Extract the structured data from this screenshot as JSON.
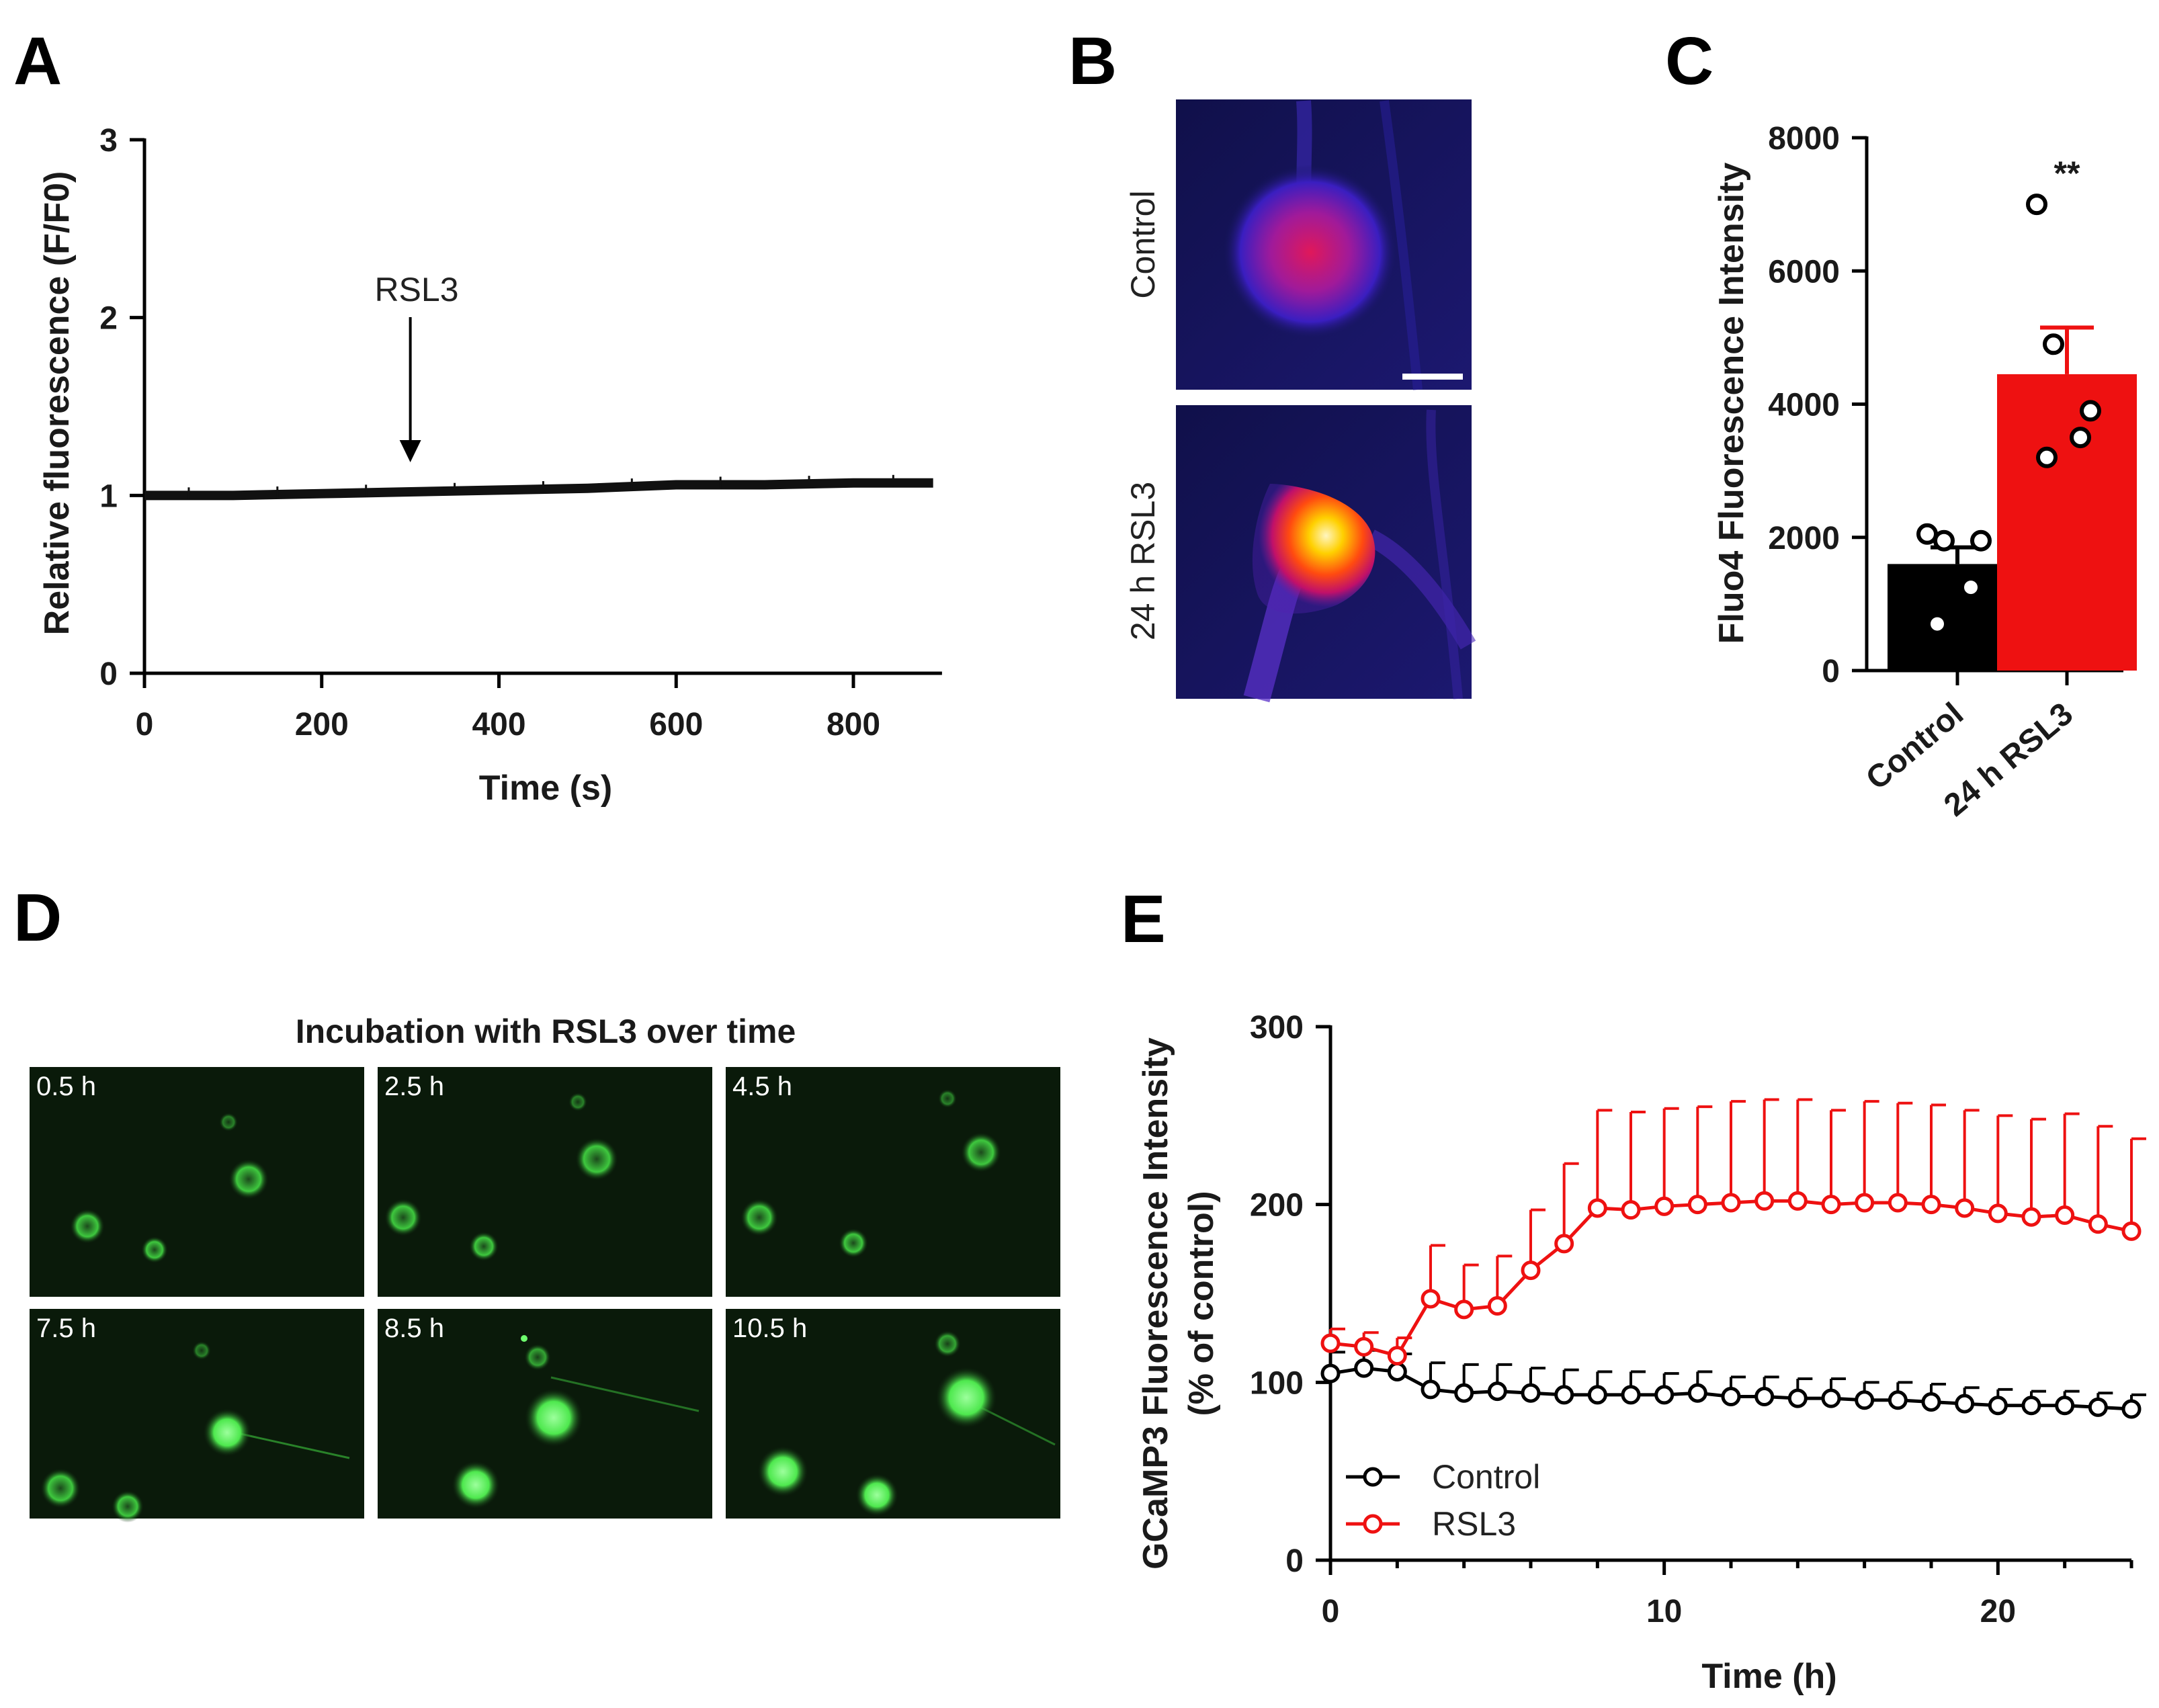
{
  "panels": {
    "A": "A",
    "B": "B",
    "C": "C",
    "D": "D",
    "E": "E"
  },
  "panel_b": {
    "control_label": "Control",
    "rsl3_label": "24 h RSL3",
    "colors": {
      "background": "#15155a",
      "cell_core": "#e0185a",
      "bright_core": "#fff5c0"
    }
  },
  "panel_d": {
    "title": "Incubation with RSL3 over time",
    "timepoints": [
      "0.5 h",
      "2.5 h",
      "4.5 h",
      "7.5 h",
      "8.5 h",
      "10.5 h"
    ],
    "colors": {
      "background": "#0a1a0a",
      "cell": "#3ec83e",
      "bright_cell": "#6eff6e"
    }
  },
  "chart_data": [
    {
      "id": "A",
      "type": "line",
      "title": "",
      "xlabel": "Time (s)",
      "ylabel": "Relative fluorescence (F/F0)",
      "xlim": [
        0,
        900
      ],
      "ylim": [
        0,
        3
      ],
      "xticks": [
        0,
        200,
        400,
        600,
        800
      ],
      "yticks": [
        0,
        1,
        2,
        3
      ],
      "series": [
        {
          "name": "trace",
          "x": [
            0,
            100,
            200,
            300,
            400,
            500,
            600,
            700,
            800,
            890
          ],
          "values": [
            1.0,
            1.0,
            1.01,
            1.02,
            1.03,
            1.04,
            1.06,
            1.06,
            1.07,
            1.07
          ],
          "color": "#111111"
        }
      ],
      "annotations": [
        {
          "text": "RSL3",
          "x": 300,
          "arrow": true
        }
      ]
    },
    {
      "id": "C",
      "type": "bar",
      "title": "",
      "xlabel": "",
      "ylabel": "Fluo4 Fluorescence Intensity",
      "ylim": [
        0,
        8000
      ],
      "yticks": [
        0,
        2000,
        4000,
        6000,
        8000
      ],
      "categories": [
        "Control",
        "24 h RSL3"
      ],
      "values": [
        1600,
        4450
      ],
      "errors": [
        250,
        700
      ],
      "colors": [
        "#000000",
        "#ee1111"
      ],
      "points": [
        [
          2050,
          1950,
          1950,
          1250,
          700
        ],
        [
          7000,
          4900,
          3900,
          3500,
          3200
        ]
      ],
      "significance": "**"
    },
    {
      "id": "E",
      "type": "line",
      "title": "",
      "xlabel": "Time (h)",
      "ylabel": "GCaMP3 Fluorescence Intensity",
      "ylabel2": "(% of control)",
      "xlim": [
        0,
        24
      ],
      "ylim": [
        0,
        300
      ],
      "xticks": [
        0,
        10,
        20
      ],
      "yticks": [
        0,
        100,
        200,
        300
      ],
      "legend": "bottom-left",
      "x": [
        0,
        1,
        2,
        3,
        4,
        5,
        6,
        7,
        8,
        9,
        10,
        11,
        12,
        13,
        14,
        15,
        16,
        17,
        18,
        19,
        20,
        21,
        22,
        23,
        24
      ],
      "series": [
        {
          "name": "Control",
          "color": "#000000",
          "values": [
            105,
            108,
            106,
            96,
            94,
            95,
            94,
            93,
            93,
            93,
            93,
            94,
            92,
            92,
            91,
            91,
            90,
            90,
            89,
            88,
            87,
            87,
            87,
            86,
            85
          ],
          "errors": [
            12,
            10,
            10,
            15,
            16,
            15,
            14,
            14,
            13,
            13,
            12,
            12,
            11,
            11,
            11,
            11,
            10,
            10,
            10,
            9,
            9,
            8,
            8,
            8,
            8
          ]
        },
        {
          "name": "RSL3",
          "color": "#ee1111",
          "values": [
            122,
            120,
            115,
            147,
            141,
            143,
            163,
            178,
            198,
            197,
            199,
            200,
            201,
            202,
            202,
            200,
            201,
            201,
            200,
            198,
            195,
            193,
            194,
            189,
            185
          ],
          "errors": [
            8,
            8,
            10,
            30,
            25,
            28,
            34,
            45,
            55,
            55,
            55,
            55,
            57,
            57,
            57,
            53,
            57,
            56,
            56,
            55,
            55,
            55,
            57,
            55,
            52
          ]
        }
      ]
    }
  ]
}
